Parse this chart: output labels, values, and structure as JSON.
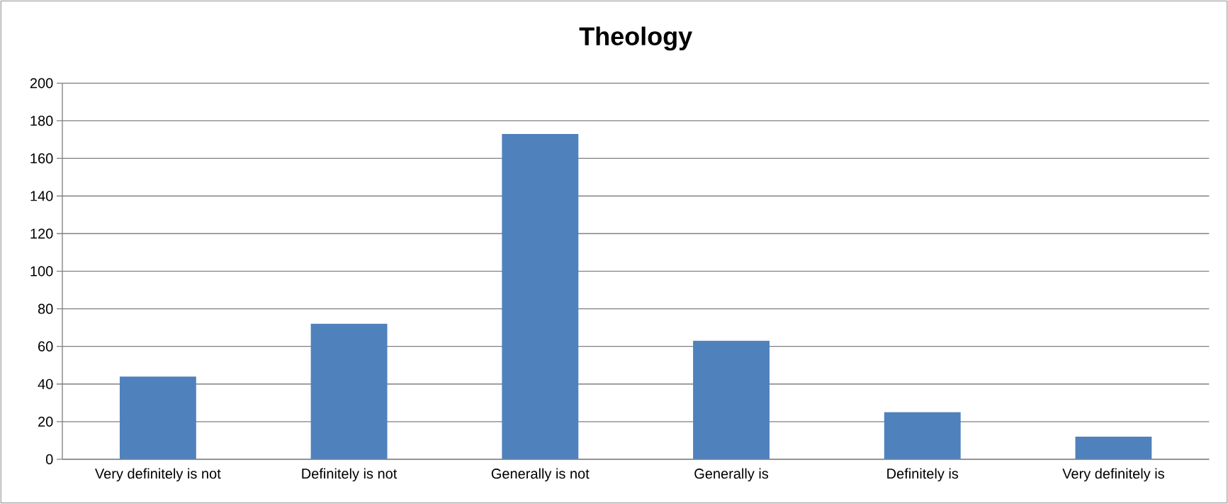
{
  "chart_data": {
    "type": "bar",
    "title": "Theology",
    "categories": [
      "Very definitely is not",
      "Definitely is not",
      "Generally is not",
      "Generally is",
      "Definitely is",
      "Very definitely is"
    ],
    "values": [
      44,
      72,
      173,
      63,
      25,
      12
    ],
    "color": "#4f81bd",
    "ylim": [
      0,
      200
    ],
    "yticks": [
      0,
      20,
      40,
      60,
      80,
      100,
      120,
      140,
      160,
      180,
      200
    ],
    "grid": "y"
  }
}
